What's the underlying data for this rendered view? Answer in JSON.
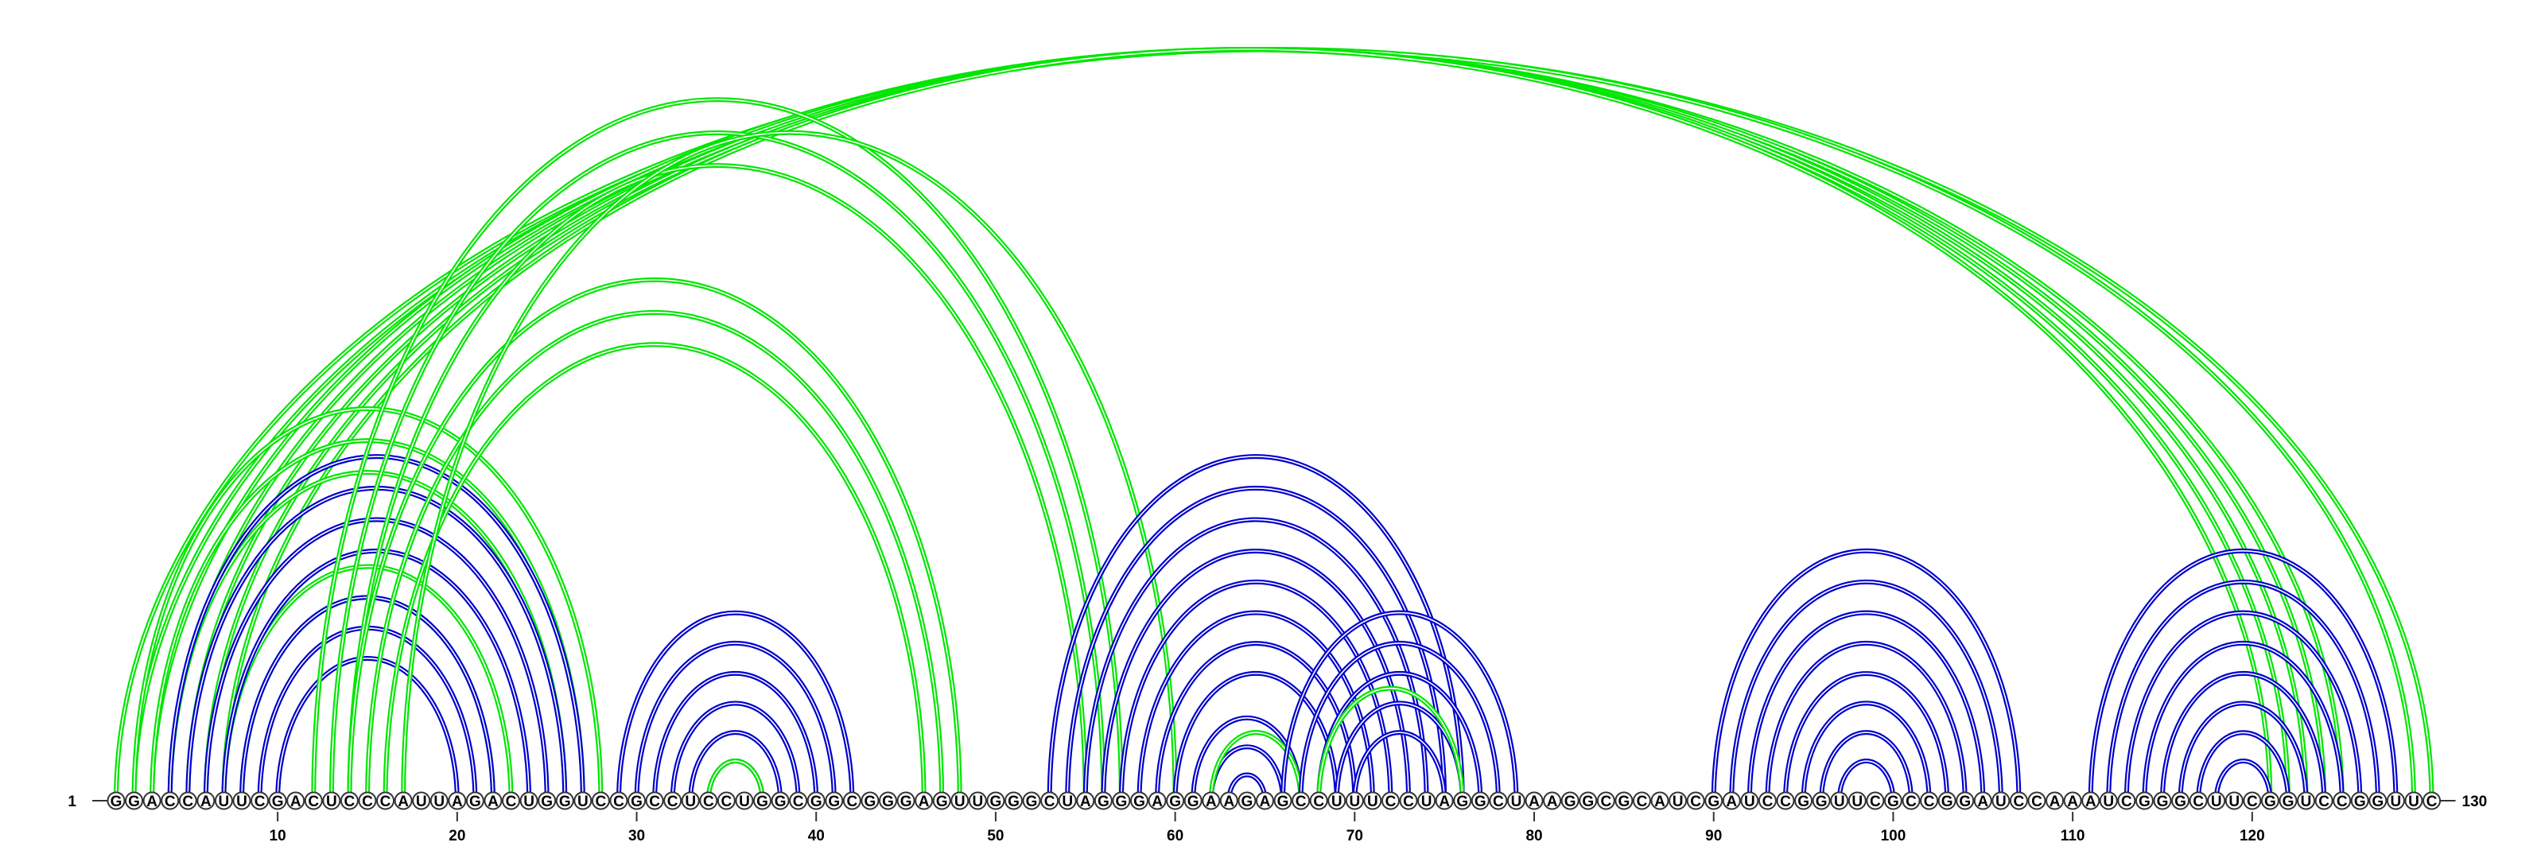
{
  "sequence": "GGACCAUUCGACUCCCAUUAGACUGGUCCGCCUCCUGGCGGCGGGAGUUGGGCUAGGGAGGAAGAGCCUUUCCUAGGCUAAGGCGCAUCGAUCCGGUUCGCCGGAUCCAAAUCGGGCUUCGGUCCGGUUC",
  "start_label": "1",
  "end_label": "130",
  "ticks": [
    "10",
    "20",
    "30",
    "40",
    "50",
    "60",
    "70",
    "80",
    "90",
    "100",
    "110",
    "120"
  ],
  "colors": {
    "blue": "#0000cc",
    "green": "#00e600",
    "nucleotide_stroke": "#333333"
  },
  "arc_groups": [
    {
      "color": "green",
      "pairs": [
        [
          1,
          130
        ],
        [
          2,
          129
        ],
        [
          3,
          125
        ],
        [
          4,
          124
        ],
        [
          5,
          123
        ],
        [
          6,
          122
        ],
        [
          7,
          121
        ]
      ]
    },
    {
      "color": "green",
      "pairs": [
        [
          2,
          28
        ],
        [
          3,
          27
        ],
        [
          4,
          26
        ]
      ]
    },
    {
      "color": "green",
      "pairs": [
        [
          7,
          23
        ],
        [
          8,
          22
        ]
      ]
    },
    {
      "color": "blue",
      "pairs": [
        [
          4,
          27
        ],
        [
          5,
          26
        ],
        [
          6,
          25
        ],
        [
          7,
          24
        ],
        [
          8,
          22
        ],
        [
          9,
          21
        ],
        [
          10,
          20
        ]
      ]
    },
    {
      "color": "green",
      "pairs": [
        [
          12,
          57
        ],
        [
          13,
          56
        ],
        [
          14,
          55
        ]
      ]
    },
    {
      "color": "green",
      "pairs": [
        [
          14,
          48
        ],
        [
          15,
          47
        ],
        [
          16,
          46
        ]
      ]
    },
    {
      "color": "green",
      "pairs": [
        [
          17,
          60
        ]
      ]
    },
    {
      "color": "blue",
      "pairs": [
        [
          29,
          42
        ],
        [
          30,
          41
        ],
        [
          31,
          40
        ],
        [
          32,
          39
        ],
        [
          33,
          38
        ],
        [
          34,
          37
        ]
      ]
    },
    {
      "color": "green",
      "pairs": [
        [
          34,
          37
        ]
      ]
    },
    {
      "color": "blue",
      "pairs": [
        [
          53,
          76
        ],
        [
          54,
          75
        ],
        [
          55,
          74
        ],
        [
          56,
          73
        ],
        [
          57,
          72
        ],
        [
          58,
          71
        ],
        [
          59,
          70
        ],
        [
          60,
          69
        ]
      ]
    },
    {
      "color": "blue",
      "pairs": [
        [
          61,
          67
        ],
        [
          62,
          66
        ],
        [
          63,
          65
        ]
      ]
    },
    {
      "color": "green",
      "pairs": [
        [
          62,
          67
        ]
      ]
    },
    {
      "color": "blue",
      "pairs": [
        [
          66,
          79
        ],
        [
          67,
          78
        ],
        [
          68,
          77
        ],
        [
          69,
          76
        ],
        [
          70,
          75
        ]
      ]
    },
    {
      "color": "green",
      "pairs": [
        [
          68,
          76
        ]
      ]
    },
    {
      "color": "blue",
      "pairs": [
        [
          90,
          107
        ],
        [
          91,
          106
        ],
        [
          92,
          105
        ],
        [
          93,
          104
        ],
        [
          94,
          103
        ],
        [
          95,
          102
        ],
        [
          96,
          101
        ],
        [
          97,
          100
        ]
      ]
    },
    {
      "color": "blue",
      "pairs": [
        [
          111,
          128
        ],
        [
          112,
          127
        ],
        [
          113,
          126
        ],
        [
          114,
          125
        ],
        [
          115,
          124
        ],
        [
          116,
          123
        ],
        [
          117,
          122
        ],
        [
          118,
          121
        ]
      ]
    }
  ]
}
